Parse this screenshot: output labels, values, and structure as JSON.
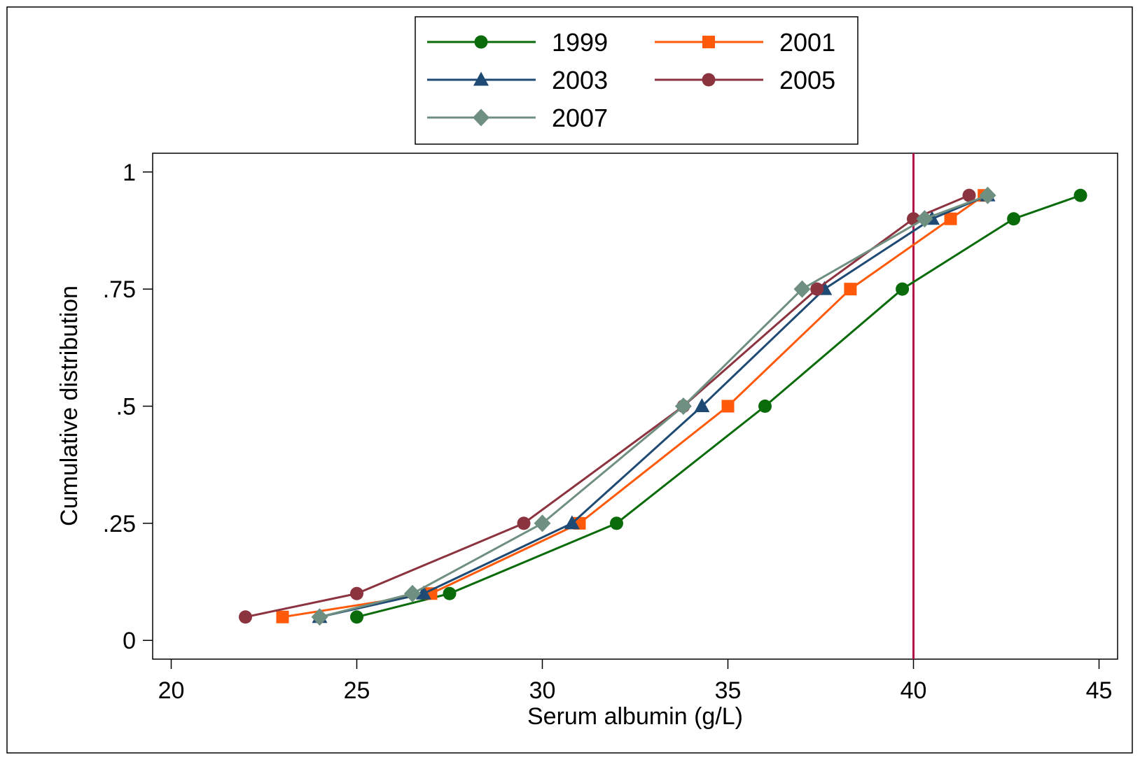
{
  "chart_data": {
    "type": "line",
    "title": "",
    "xlabel": "Serum albumin (g/L)",
    "ylabel": "Cumulative distribution",
    "xlim": [
      19.5,
      45.5
    ],
    "ylim": [
      -0.04,
      1.04
    ],
    "x_ticks": [
      20,
      25,
      30,
      35,
      40,
      45
    ],
    "x_tick_labels": [
      "20",
      "25",
      "30",
      "35",
      "40",
      "45"
    ],
    "y_ticks": [
      0,
      0.25,
      0.5,
      0.75,
      1
    ],
    "y_tick_labels": [
      "0",
      ".25",
      ".5",
      ".75",
      "1"
    ],
    "grid": false,
    "legend_position": "top-center",
    "reference_line": {
      "axis": "x",
      "value": 40,
      "color": "#b0124a"
    },
    "series": [
      {
        "name": "1999",
        "color": "#0a6b0a",
        "marker": "circle",
        "points": [
          [
            25,
            0.05
          ],
          [
            27.5,
            0.1
          ],
          [
            32,
            0.25
          ],
          [
            36,
            0.5
          ],
          [
            39.7,
            0.75
          ],
          [
            42.7,
            0.9
          ],
          [
            44.5,
            0.95
          ]
        ]
      },
      {
        "name": "2001",
        "color": "#ff5a0a",
        "marker": "square",
        "points": [
          [
            23,
            0.05
          ],
          [
            27,
            0.1
          ],
          [
            31,
            0.25
          ],
          [
            35,
            0.5
          ],
          [
            38.3,
            0.75
          ],
          [
            41,
            0.9
          ],
          [
            41.9,
            0.95
          ]
        ]
      },
      {
        "name": "2003",
        "color": "#1f4a73",
        "marker": "triangle",
        "points": [
          [
            24,
            0.05
          ],
          [
            26.8,
            0.1
          ],
          [
            30.8,
            0.25
          ],
          [
            34.3,
            0.5
          ],
          [
            37.6,
            0.75
          ],
          [
            40.5,
            0.9
          ],
          [
            42,
            0.95
          ]
        ]
      },
      {
        "name": "2005",
        "color": "#8c3340",
        "marker": "circle",
        "points": [
          [
            22,
            0.05
          ],
          [
            25,
            0.1
          ],
          [
            29.5,
            0.25
          ],
          [
            33.8,
            0.5
          ],
          [
            37.4,
            0.75
          ],
          [
            40,
            0.9
          ],
          [
            41.5,
            0.95
          ]
        ]
      },
      {
        "name": "2007",
        "color": "#6f8f80",
        "marker": "diamond",
        "points": [
          [
            24,
            0.05
          ],
          [
            26.5,
            0.1
          ],
          [
            30,
            0.25
          ],
          [
            33.8,
            0.5
          ],
          [
            37,
            0.75
          ],
          [
            40.3,
            0.9
          ],
          [
            42,
            0.95
          ]
        ]
      }
    ]
  }
}
